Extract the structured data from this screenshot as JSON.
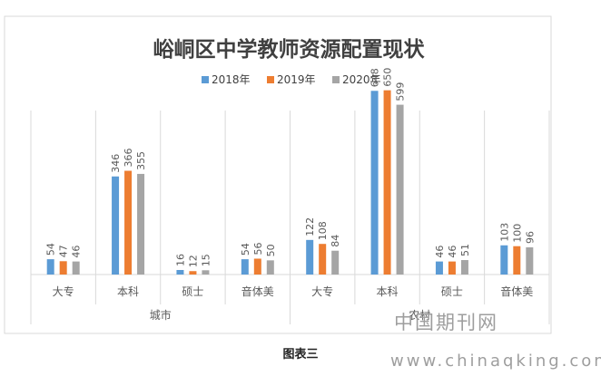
{
  "chart_data": {
    "type": "bar",
    "title": "峪峒区中学教师资源配置现状",
    "series": [
      {
        "name": "2018年",
        "color": "#5b9bd5",
        "values": [
          54,
          346,
          16,
          54,
          122,
          648,
          46,
          103
        ]
      },
      {
        "name": "2019年",
        "color": "#ed7d31",
        "values": [
          47,
          366,
          12,
          56,
          108,
          650,
          46,
          100
        ]
      },
      {
        "name": "2020年",
        "color": "#a5a5a5",
        "values": [
          46,
          355,
          15,
          50,
          84,
          599,
          51,
          96
        ]
      }
    ],
    "categories": [
      "大专",
      "本科",
      "硕士",
      "音体美",
      "大专",
      "本科",
      "硕士",
      "音体美"
    ],
    "groups": [
      {
        "label": "城市",
        "span": 4
      },
      {
        "label": "农村",
        "span": 4
      }
    ],
    "ylim": [
      0,
      700
    ],
    "legend_position": "top",
    "data_labels": true,
    "grid": false
  },
  "caption": "图表三",
  "watermark": {
    "cn": "中国期刊网",
    "url": "www.chinaqking.com"
  }
}
